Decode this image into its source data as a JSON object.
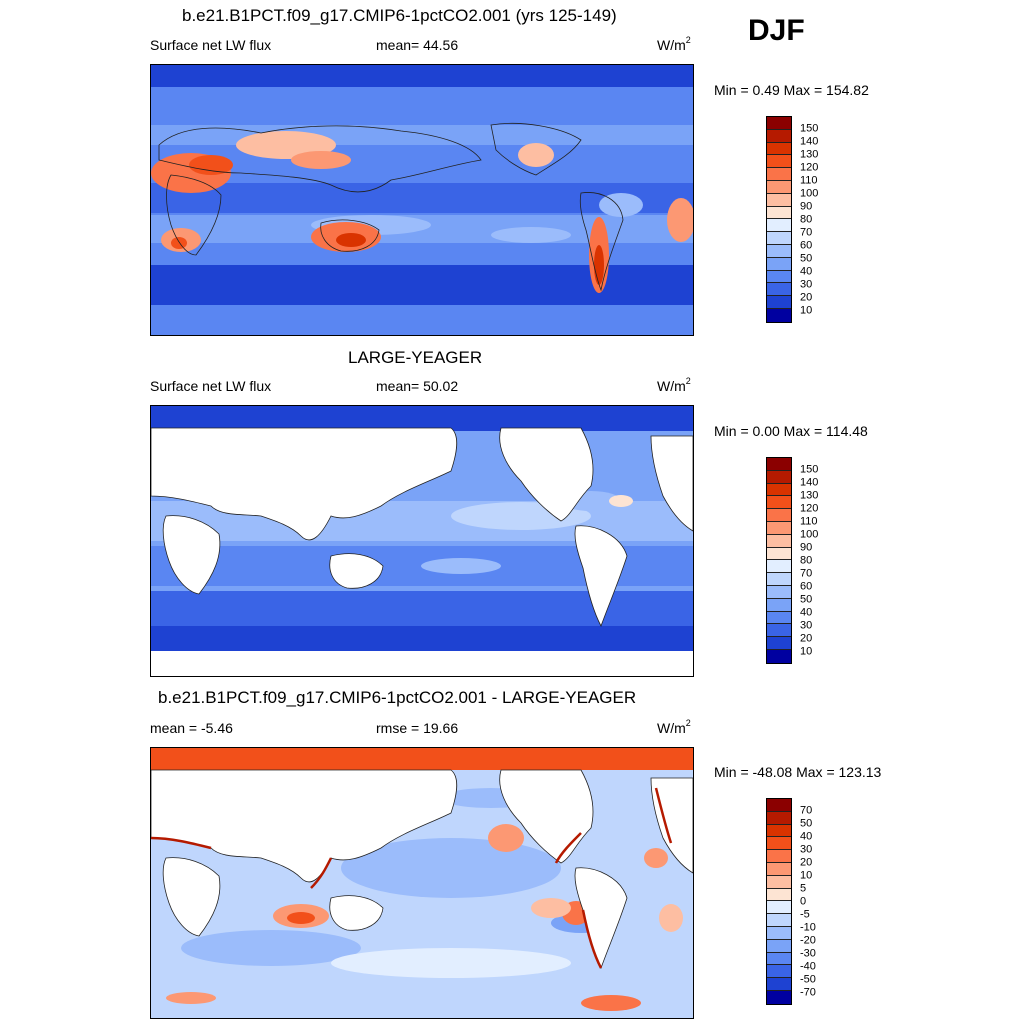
{
  "season": "DJF",
  "units": "W/m",
  "units_exponent": "2",
  "panels": [
    {
      "title": "b.e21.B1PCT.f09_g17.CMIP6-1pctCO2.001 (yrs 125-149)",
      "left_label": "Surface net LW flux",
      "center_label": "mean=  44.56",
      "minmax": "Min =   0.49 Max = 154.82"
    },
    {
      "title": "LARGE-YEAGER",
      "left_label": "Surface net LW flux",
      "center_label": "mean=  50.02",
      "minmax": "Min =   0.00 Max = 114.48"
    },
    {
      "title": "b.e21.B1PCT.f09_g17.CMIP6-1pctCO2.001 - LARGE-YEAGER",
      "left_label": "mean =  -5.46",
      "center_label": "rmse =  19.66",
      "minmax": "Min = -48.08 Max = 123.13"
    }
  ],
  "colorbar_abs": {
    "labels": [
      "150",
      "140",
      "130",
      "120",
      "110",
      "100",
      "90",
      "80",
      "70",
      "60",
      "50",
      "40",
      "30",
      "20",
      "10"
    ],
    "colors": [
      "#8b0000",
      "#b51a00",
      "#d93300",
      "#f2501a",
      "#fa7348",
      "#fc9873",
      "#fdbea2",
      "#fde4d3",
      "#e2eeff",
      "#bfd6fd",
      "#9bbcfb",
      "#7aa3f7",
      "#5a86f2",
      "#3a64e6",
      "#1e42d2",
      "#0000a0"
    ]
  },
  "colorbar_diff": {
    "labels": [
      "70",
      "50",
      "40",
      "30",
      "20",
      "10",
      "5",
      "0",
      "-5",
      "-10",
      "-20",
      "-30",
      "-40",
      "-50",
      "-70"
    ],
    "colors": [
      "#8b0000",
      "#b51a00",
      "#d93300",
      "#f2501a",
      "#fa7348",
      "#fc9873",
      "#fdbea2",
      "#fde4d3",
      "#e2eeff",
      "#bfd6fd",
      "#9bbcfb",
      "#7aa3f7",
      "#5a86f2",
      "#3a64e6",
      "#1e42d2",
      "#0000a0"
    ]
  }
}
